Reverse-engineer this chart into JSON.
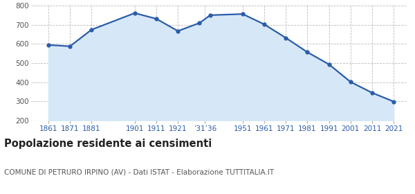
{
  "years": [
    1861,
    1871,
    1881,
    1901,
    1911,
    1921,
    1931,
    1936,
    1951,
    1961,
    1971,
    1981,
    1991,
    2001,
    2011,
    2021
  ],
  "population": [
    595,
    588,
    675,
    762,
    732,
    668,
    710,
    751,
    757,
    703,
    632,
    557,
    493,
    401,
    344,
    298
  ],
  "x_tick_labels": [
    "1861",
    "1871",
    "1881",
    "1901",
    "1911",
    "1921",
    "’31’36",
    "1951",
    "1961",
    "1971",
    "1981",
    "1991",
    "2001",
    "2011",
    "2021"
  ],
  "x_tick_positions": [
    1861,
    1871,
    1881,
    1901,
    1911,
    1921,
    1933.5,
    1951,
    1961,
    1971,
    1981,
    1991,
    2001,
    2011,
    2021
  ],
  "ylim": [
    200,
    800
  ],
  "yticks": [
    200,
    300,
    400,
    500,
    600,
    700,
    800
  ],
  "line_color": "#2a5caa",
  "fill_color": "#d6e8f7",
  "marker": "o",
  "marker_size": 3.5,
  "line_width": 1.6,
  "title": "Popolazione residente ai censimenti",
  "subtitle": "COMUNE DI PETRURO IRPINO (AV) - Dati ISTAT - Elaborazione TUTTITALIA.IT",
  "title_fontsize": 10.5,
  "subtitle_fontsize": 7.5,
  "tick_fontsize": 7.5,
  "grid_color": "#bbbbbb",
  "background_color": "#ffffff",
  "tick_color": "#2a5caa",
  "ytick_color": "#555555"
}
